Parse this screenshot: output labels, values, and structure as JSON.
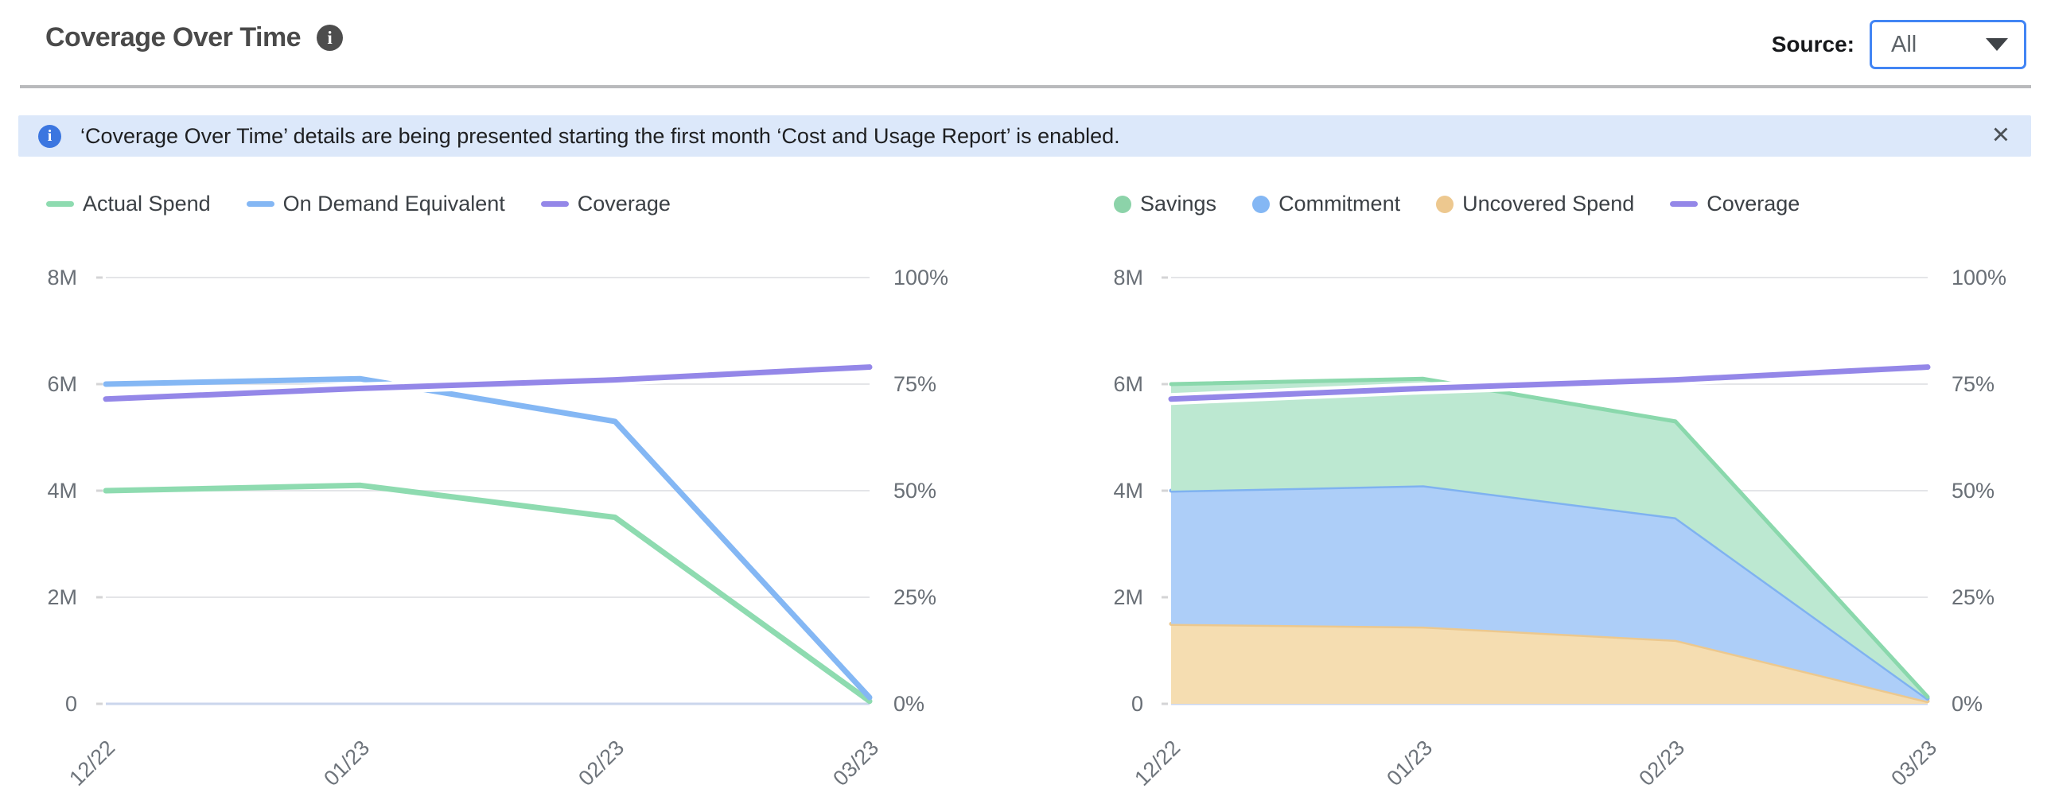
{
  "header": {
    "title": "Coverage Over Time",
    "source_label": "Source:",
    "source_value": "All"
  },
  "banner": {
    "text": "‘Coverage Over Time’ details are being presented starting the first month ‘Cost and Usage Report’ is enabled.",
    "close_icon": "✕"
  },
  "colors": {
    "title_text": "#4A4A4A",
    "banner_bg": "#DCE8FA",
    "banner_icon": "#3B76E0",
    "dropdown_border": "#4285F4",
    "divider": "#B9BABC",
    "axis_text": "#696F76",
    "x_label_text": "#6E747B",
    "legend_text": "#3B4045",
    "grid_line": "#E4E5E8",
    "zero_line": "#CBD6EC",
    "tick_dash": "#D4D4D6"
  },
  "chart_data": [
    {
      "type": "line",
      "title": "",
      "x": [
        "12/22",
        "01/23",
        "02/23",
        "03/23"
      ],
      "series": [
        {
          "name": "Actual Spend",
          "style": "line",
          "axis": "left",
          "color": "#8EDBB0",
          "values": [
            4.0,
            4.1,
            3.5,
            0.05
          ]
        },
        {
          "name": "On Demand Equivalent",
          "style": "line",
          "axis": "left",
          "color": "#84B7F4",
          "values": [
            6.0,
            6.1,
            5.3,
            0.12
          ]
        },
        {
          "name": "Coverage",
          "style": "line",
          "axis": "right",
          "color": "#9487E8",
          "halo": "#FFFFFF",
          "values": [
            71.5,
            74,
            76,
            79
          ]
        }
      ],
      "legend": [
        {
          "label": "Actual Spend",
          "swatch": "line",
          "color": "#8EDBB0"
        },
        {
          "label": "On Demand Equivalent",
          "swatch": "line",
          "color": "#84B7F4"
        },
        {
          "label": "Coverage",
          "swatch": "line",
          "color": "#9487E8"
        }
      ],
      "left_axis": {
        "ticks": [
          "0",
          "2M",
          "4M",
          "6M",
          "8M"
        ],
        "min": 0,
        "max": 8,
        "unit": "M"
      },
      "right_axis": {
        "ticks": [
          "0%",
          "25%",
          "50%",
          "75%",
          "100%"
        ],
        "min": 0,
        "max": 100,
        "unit": "%"
      },
      "grid": true,
      "legend_position": "top-left"
    },
    {
      "type": "area",
      "title": "",
      "stacked": true,
      "x": [
        "12/22",
        "01/23",
        "02/23",
        "03/23"
      ],
      "series": [
        {
          "name": "Uncovered Spend",
          "style": "area",
          "axis": "left",
          "color": "#ECC88E",
          "fill": "#F5DDB1",
          "values": [
            1.5,
            1.45,
            1.2,
            0.05
          ]
        },
        {
          "name": "Commitment",
          "style": "area",
          "axis": "left",
          "color": "#7FB2F0",
          "fill": "#ADCEF8",
          "values": [
            2.5,
            2.65,
            2.3,
            0.05
          ]
        },
        {
          "name": "Savings",
          "style": "area",
          "axis": "left",
          "color": "#8AD8AC",
          "fill": "#BCE8D1",
          "values": [
            2.0,
            2.0,
            1.8,
            0.03
          ]
        },
        {
          "name": "Coverage",
          "style": "line",
          "axis": "right",
          "color": "#9487E8",
          "halo": "#FFFFFF",
          "values": [
            71.5,
            74,
            76,
            79
          ]
        }
      ],
      "legend": [
        {
          "label": "Savings",
          "swatch": "circle",
          "color": "#8CD3A9"
        },
        {
          "label": "Commitment",
          "swatch": "circle",
          "color": "#84B7F4"
        },
        {
          "label": "Uncovered Spend",
          "swatch": "circle",
          "color": "#EDC88F"
        },
        {
          "label": "Coverage",
          "swatch": "line",
          "color": "#9487E8"
        }
      ],
      "left_axis": {
        "ticks": [
          "0",
          "2M",
          "4M",
          "6M",
          "8M"
        ],
        "min": 0,
        "max": 8,
        "unit": "M"
      },
      "right_axis": {
        "ticks": [
          "0%",
          "25%",
          "50%",
          "75%",
          "100%"
        ],
        "min": 0,
        "max": 100,
        "unit": "%"
      },
      "grid": true,
      "legend_position": "top-left"
    }
  ]
}
